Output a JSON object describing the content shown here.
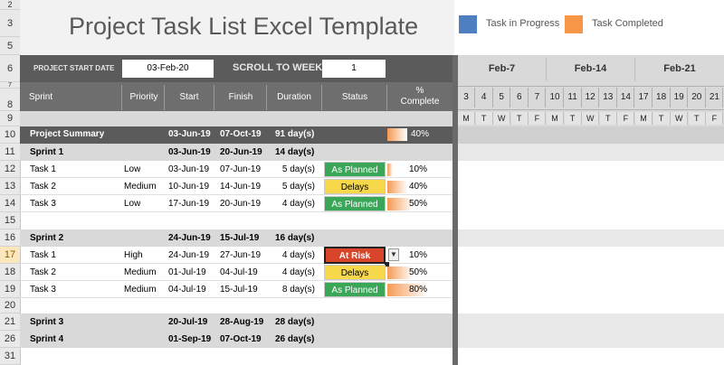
{
  "title": "Project Task List Excel Template",
  "legend": {
    "in_progress_label": "Task in Progress",
    "completed_label": "Task Completed",
    "in_progress_color": "#4e7fc0",
    "completed_color": "#f79646"
  },
  "settings": {
    "start_date_label": "PROJECT START DATE",
    "start_date_value": "03-Feb-20",
    "scroll_label": "SCROLL TO WEEK #",
    "scroll_value": "1"
  },
  "row_numbers": [
    "2",
    "3",
    "5",
    "6",
    "7",
    "8",
    "9",
    "10",
    "11",
    "12",
    "13",
    "14",
    "15",
    "16",
    "17",
    "18",
    "19",
    "20",
    "21",
    "26",
    "31"
  ],
  "columns": {
    "sprint": "Sprint",
    "priority": "Priority",
    "start": "Start",
    "finish": "Finish",
    "duration": "Duration",
    "status": "Status",
    "pct_top": "%",
    "pct_bottom": "Complete"
  },
  "calendar": {
    "weeks": [
      "Feb-7",
      "Feb-14",
      "Feb-21"
    ],
    "days": [
      "3",
      "4",
      "5",
      "6",
      "7",
      "10",
      "11",
      "12",
      "13",
      "14",
      "17",
      "18",
      "19",
      "20",
      "21"
    ],
    "dows": [
      "M",
      "T",
      "W",
      "T",
      "F",
      "M",
      "T",
      "W",
      "T",
      "F",
      "M",
      "T",
      "W",
      "T",
      "F"
    ]
  },
  "summary": {
    "name": "Project Summary",
    "start": "03-Jun-19",
    "finish": "07-Oct-19",
    "duration": "91 day(s)",
    "pct": "40%",
    "progress": 0.4
  },
  "sprint1": {
    "name": "Sprint 1",
    "start": "03-Jun-19",
    "finish": "20-Jun-19",
    "duration": "14 day(s)",
    "tasks": [
      {
        "name": "Task 1",
        "priority": "Low",
        "start": "03-Jun-19",
        "finish": "07-Jun-19",
        "duration": "5 day(s)",
        "status": "As Planned",
        "pct": "10%",
        "progress": 0.1
      },
      {
        "name": "Task 2",
        "priority": "Medium",
        "start": "10-Jun-19",
        "finish": "14-Jun-19",
        "duration": "5 day(s)",
        "status": "Delays",
        "pct": "40%",
        "progress": 0.4
      },
      {
        "name": "Task 3",
        "priority": "Low",
        "start": "17-Jun-19",
        "finish": "20-Jun-19",
        "duration": "4 day(s)",
        "status": "As Planned",
        "pct": "50%",
        "progress": 0.5
      }
    ]
  },
  "sprint2": {
    "name": "Sprint 2",
    "start": "24-Jun-19",
    "finish": "15-Jul-19",
    "duration": "16 day(s)",
    "tasks": [
      {
        "name": "Task 1",
        "priority": "High",
        "start": "24-Jun-19",
        "finish": "27-Jun-19",
        "duration": "4 day(s)",
        "status": "At Risk",
        "pct": "10%",
        "progress": 0.1
      },
      {
        "name": "Task 2",
        "priority": "Medium",
        "start": "01-Jul-19",
        "finish": "04-Jul-19",
        "duration": "4 day(s)",
        "status": "Delays",
        "pct": "50%",
        "progress": 0.5
      },
      {
        "name": "Task 3",
        "priority": "Medium",
        "start": "04-Jul-19",
        "finish": "15-Jul-19",
        "duration": "8 day(s)",
        "status": "As Planned",
        "pct": "80%",
        "progress": 0.8
      }
    ]
  },
  "sprint3": {
    "name": "Sprint 3",
    "start": "20-Jul-19",
    "finish": "28-Aug-19",
    "duration": "28 day(s)"
  },
  "sprint4": {
    "name": "Sprint 4",
    "start": "01-Sep-19",
    "finish": "07-Oct-19",
    "duration": "26 day(s)"
  },
  "status_colors": {
    "As Planned": "#3aa657",
    "Delays": "#f7d84a",
    "At Risk": "#d8452b"
  }
}
